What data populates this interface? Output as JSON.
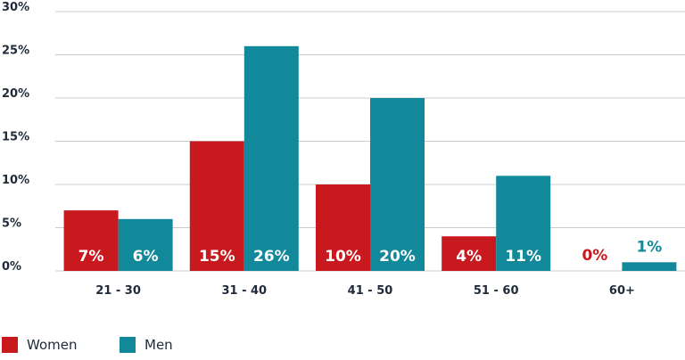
{
  "colors": {
    "women": "#c8191f",
    "men": "#12899a",
    "grid": "#c8ccd2",
    "text": "#1f2b3a"
  },
  "chart_data": {
    "type": "bar",
    "categories": [
      "21 - 30",
      "31 - 40",
      "41 - 50",
      "51 - 60",
      "60+"
    ],
    "series": [
      {
        "name": "Women",
        "values": [
          7,
          15,
          10,
          4,
          0
        ],
        "labels": [
          "7%",
          "15%",
          "10%",
          "4%",
          "0%"
        ]
      },
      {
        "name": "Men",
        "values": [
          6,
          26,
          20,
          11,
          1
        ],
        "labels": [
          "6%",
          "26%",
          "20%",
          "11%",
          "1%"
        ]
      }
    ],
    "yticks": [
      "0%",
      "5%",
      "10%",
      "15%",
      "20%",
      "25%",
      "30%"
    ],
    "ylim": [
      0,
      30
    ],
    "grid": true,
    "legend_position": "bottom-left",
    "title": "",
    "xlabel": "",
    "ylabel": ""
  }
}
